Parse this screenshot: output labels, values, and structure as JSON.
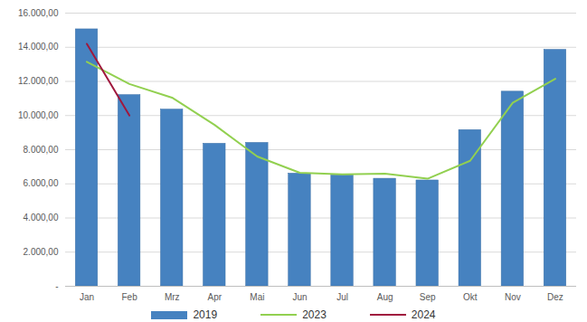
{
  "chart_data": {
    "type": "bar",
    "categories": [
      "Jan",
      "Feb",
      "Mrz",
      "Apr",
      "Mai",
      "Jun",
      "Jul",
      "Aug",
      "Sep",
      "Okt",
      "Nov",
      "Dez"
    ],
    "series": [
      {
        "name": "2019",
        "type": "bar",
        "color": "#4682c0",
        "values": [
          15050,
          11200,
          10350,
          8350,
          8400,
          6600,
          6500,
          6300,
          6200,
          9150,
          11400,
          13850
        ]
      },
      {
        "name": "2023",
        "type": "line",
        "color": "#92d050",
        "values": [
          13150,
          11850,
          11050,
          9450,
          7600,
          6650,
          6550,
          6600,
          6300,
          7350,
          10750,
          12150
        ]
      },
      {
        "name": "2024",
        "type": "line",
        "color": "#a0183e",
        "values": [
          14200,
          10000,
          null,
          null,
          null,
          null,
          null,
          null,
          null,
          null,
          null,
          null
        ]
      }
    ],
    "ylim": [
      0,
      16000
    ],
    "yticks": [
      {
        "value": 0,
        "label": "-"
      },
      {
        "value": 2000,
        "label": "2.000,00"
      },
      {
        "value": 4000,
        "label": "4.000,00"
      },
      {
        "value": 6000,
        "label": "6.000,00"
      },
      {
        "value": 8000,
        "label": "8.000,00"
      },
      {
        "value": 10000,
        "label": "10.000,00"
      },
      {
        "value": 12000,
        "label": "12.000,00"
      },
      {
        "value": 14000,
        "label": "14.000,00"
      },
      {
        "value": 16000,
        "label": "16.000,00"
      }
    ],
    "grid": true,
    "legend": "bottom"
  }
}
